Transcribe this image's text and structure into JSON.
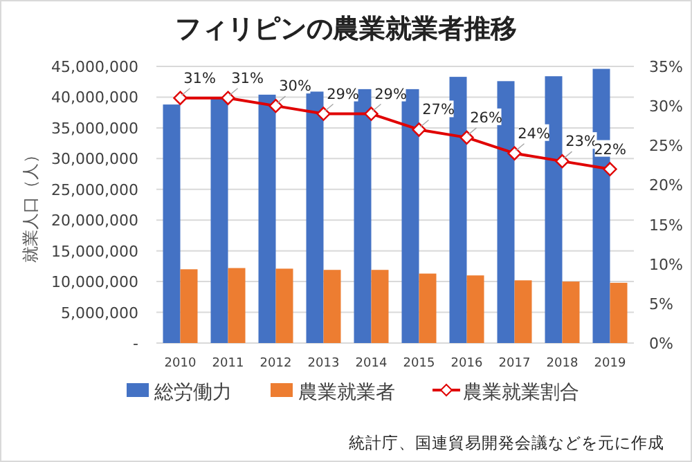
{
  "chart_data": {
    "type": "bar",
    "title": "フィリピンの農業就業者推移",
    "ylabel": "就業人口（人）",
    "categories": [
      "2010",
      "2011",
      "2012",
      "2013",
      "2014",
      "2015",
      "2016",
      "2017",
      "2018",
      "2019"
    ],
    "series": [
      {
        "name": "総労働力",
        "color": "#4472c4",
        "values": [
          38800000,
          39900000,
          40400000,
          40900000,
          41300000,
          41300000,
          43300000,
          42600000,
          43400000,
          44600000
        ]
      },
      {
        "name": "農業就業者",
        "color": "#ed7d31",
        "values": [
          12000000,
          12200000,
          12100000,
          11900000,
          11900000,
          11300000,
          11000000,
          10200000,
          10000000,
          9800000
        ]
      },
      {
        "name": "農業就業割合",
        "type": "line",
        "axis": "y2",
        "color": "#e00000",
        "marker": "diamond",
        "data_labels": true,
        "value_labels": [
          "31%",
          "31%",
          "30%",
          "29%",
          "29%",
          "27%",
          "26%",
          "24%",
          "23%",
          "22%"
        ],
        "values": [
          31,
          31,
          30,
          29,
          29,
          27,
          26,
          24,
          23,
          22
        ]
      }
    ],
    "ylim": [
      0,
      45000000
    ],
    "yticks": [
      {
        "value": 0,
        "label": "-"
      },
      {
        "value": 5000000,
        "label": "5,000,000"
      },
      {
        "value": 10000000,
        "label": "10,000,000"
      },
      {
        "value": 15000000,
        "label": "15,000,000"
      },
      {
        "value": 20000000,
        "label": "20,000,000"
      },
      {
        "value": 25000000,
        "label": "25,000,000"
      },
      {
        "value": 30000000,
        "label": "30,000,000"
      },
      {
        "value": 35000000,
        "label": "35,000,000"
      },
      {
        "value": 40000000,
        "label": "40,000,000"
      },
      {
        "value": 45000000,
        "label": "45,000,000"
      }
    ],
    "y2lim": [
      0,
      35
    ],
    "y2ticks": [
      {
        "value": 0,
        "label": "0%"
      },
      {
        "value": 5,
        "label": "5%"
      },
      {
        "value": 10,
        "label": "10%"
      },
      {
        "value": 15,
        "label": "15%"
      },
      {
        "value": 20,
        "label": "20%"
      },
      {
        "value": 25,
        "label": "25%"
      },
      {
        "value": 30,
        "label": "30%"
      },
      {
        "value": 35,
        "label": "35%"
      }
    ],
    "grid": "y",
    "legend": "bottom",
    "annotations": [
      "統計庁、国連貿易開発会議などを元に作成"
    ]
  }
}
